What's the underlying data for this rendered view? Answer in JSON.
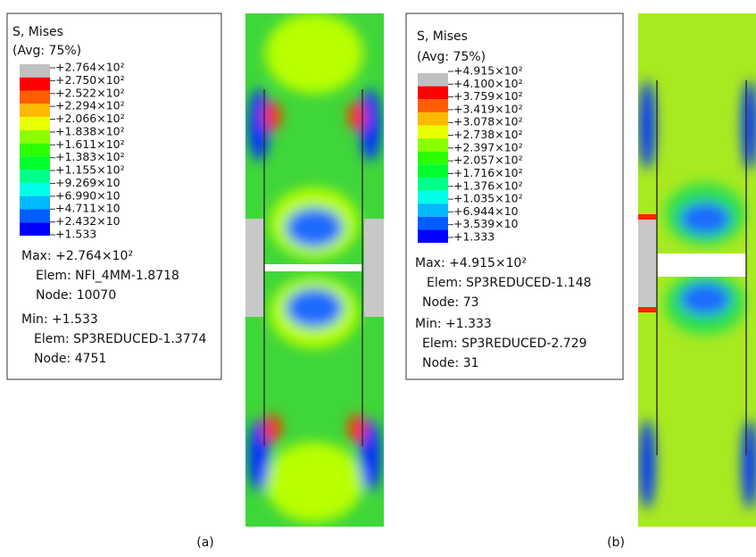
{
  "panels": [
    {
      "legend": {
        "title": "S, Mises",
        "subtitle": "(Avg: 75%)",
        "labels": [
          "+2.764×10²",
          "+2.750×10²",
          "+2.522×10²",
          "+2.294×10²",
          "+2.066×10²",
          "+1.838×10²",
          "+1.611×10²",
          "+1.383×10²",
          "+1.155×10²",
          "+9.269×10",
          "+6.990×10",
          "+4.711×10",
          "+2.432×10",
          "+1.533"
        ],
        "colors": [
          "#c0c0c0",
          "#ff0000",
          "#ff5d00",
          "#ffb900",
          "#e8ff00",
          "#8bff00",
          "#2eff00",
          "#00ff2e",
          "#00ff8b",
          "#00ffe8",
          "#00b9ff",
          "#005dff",
          "#0000ff"
        ]
      },
      "max": {
        "label": "Max: +2.764×10²",
        "elem": "Elem: NFI_4MM-1.8718",
        "node": "Node: 10070"
      },
      "min": {
        "label": "Min: +1.533",
        "elem": "Elem: SP3REDUCED-1.3774",
        "node": "Node: 4751"
      },
      "caption": "(a)"
    },
    {
      "legend": {
        "title": "S, Mises",
        "subtitle": "(Avg: 75%)",
        "labels": [
          "+4.915×10²",
          "+4.100×10²",
          "+3.759×10²",
          "+3.419×10²",
          "+3.078×10²",
          "+2.738×10²",
          "+2.397×10²",
          "+2.057×10²",
          "+1.716×10²",
          "+1.376×10²",
          "+1.035×10²",
          "+6.944×10",
          "+3.539×10",
          "+1.333"
        ],
        "colors": [
          "#c0c0c0",
          "#ff0000",
          "#ff5d00",
          "#ffb900",
          "#e8ff00",
          "#8bff00",
          "#2eff00",
          "#00ff2e",
          "#00ff8b",
          "#00ffe8",
          "#00b9ff",
          "#005dff",
          "#0000ff"
        ]
      },
      "max": {
        "label": "Max: +4.915×10²",
        "elem": "Elem: SP3REDUCED-1.148",
        "node": "Node: 73"
      },
      "min": {
        "label": "Min: +1.333",
        "elem": "Elem: SP3REDUCED-2.729",
        "node": "Node: 31"
      },
      "caption": "(b)"
    }
  ]
}
